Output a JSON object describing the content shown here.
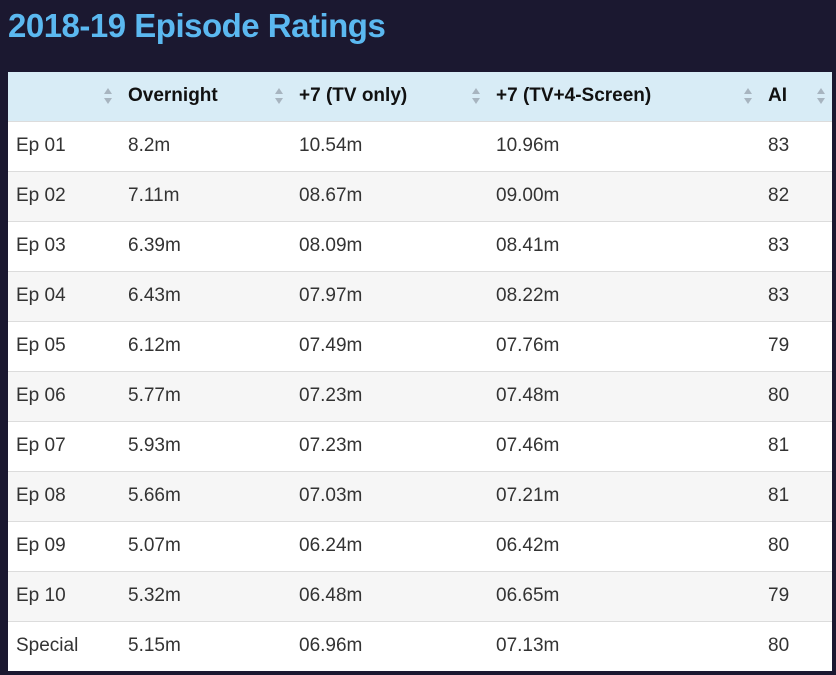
{
  "page": {
    "title": "2018-19 Episode Ratings"
  },
  "colors": {
    "page_background": "#1b1830",
    "title": "#5bb8f0",
    "header_background": "#d8ecf6",
    "row_odd_background": "#ffffff",
    "row_even_background": "#f6f6f6",
    "sort_arrow": "#a7b4bf"
  },
  "table": {
    "columns": [
      {
        "label": "",
        "sort_icon": "sort-arrows-icon"
      },
      {
        "label": "Overnight",
        "sort_icon": "sort-arrows-icon"
      },
      {
        "label": "+7 (TV only)",
        "sort_icon": "sort-arrows-icon"
      },
      {
        "label": "+7 (TV+4-Screen)",
        "sort_icon": "sort-arrows-icon"
      },
      {
        "label": "AI",
        "sort_icon": "sort-arrows-icon"
      }
    ],
    "rows": [
      [
        "Ep 01",
        "8.2m",
        "10.54m",
        "10.96m",
        "83"
      ],
      [
        "Ep 02",
        "7.11m",
        "08.67m",
        "09.00m",
        "82"
      ],
      [
        "Ep 03",
        "6.39m",
        "08.09m",
        "08.41m",
        "83"
      ],
      [
        "Ep 04",
        "6.43m",
        "07.97m",
        "08.22m",
        "83"
      ],
      [
        "Ep 05",
        "6.12m",
        "07.49m",
        "07.76m",
        "79"
      ],
      [
        "Ep 06",
        "5.77m",
        "07.23m",
        "07.48m",
        "80"
      ],
      [
        "Ep 07",
        "5.93m",
        "07.23m",
        "07.46m",
        "81"
      ],
      [
        "Ep 08",
        "5.66m",
        "07.03m",
        "07.21m",
        "81"
      ],
      [
        "Ep 09",
        "5.07m",
        "06.24m",
        "06.42m",
        "80"
      ],
      [
        "Ep 10",
        "5.32m",
        "06.48m",
        "06.65m",
        "79"
      ],
      [
        "Special",
        "5.15m",
        "06.96m",
        "07.13m",
        "80"
      ]
    ]
  }
}
